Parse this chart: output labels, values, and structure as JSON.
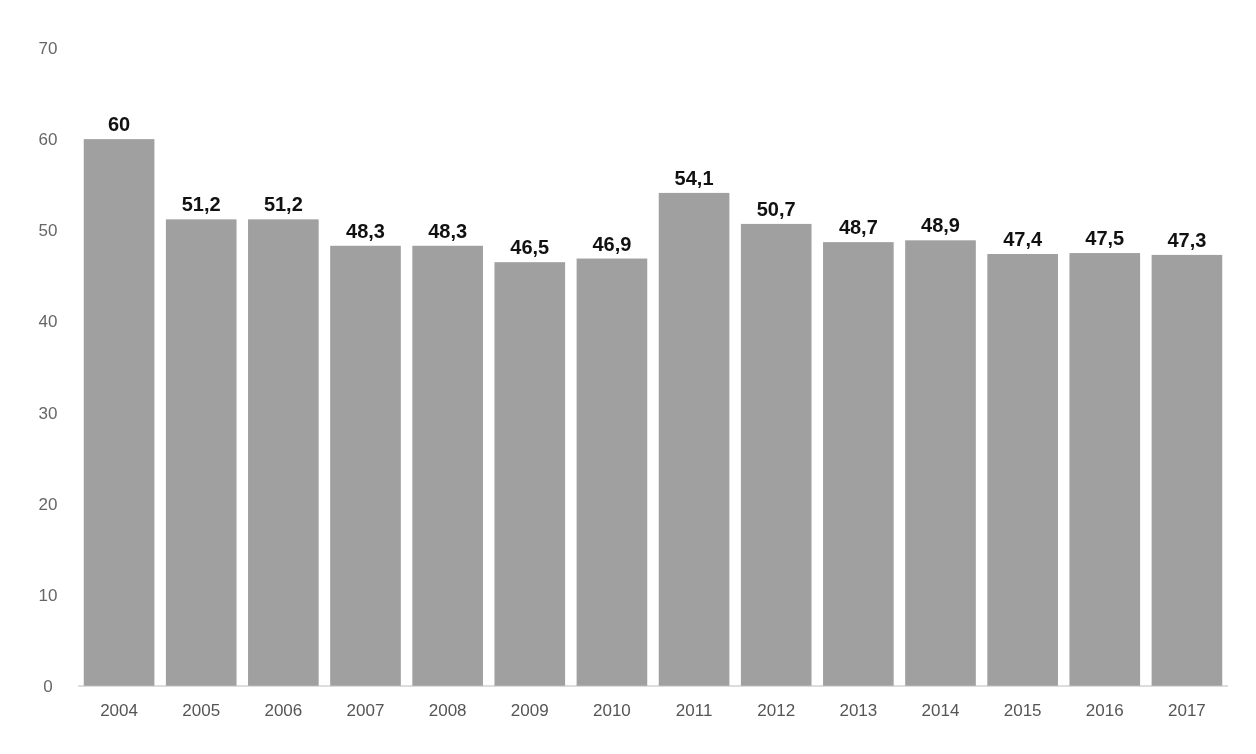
{
  "chart_data": {
    "type": "bar",
    "categories": [
      "2004",
      "2005",
      "2006",
      "2007",
      "2008",
      "2009",
      "2010",
      "2011",
      "2012",
      "2013",
      "2014",
      "2015",
      "2016",
      "2017"
    ],
    "values": [
      60,
      51.2,
      51.2,
      48.3,
      48.3,
      46.5,
      46.9,
      54.1,
      50.7,
      48.7,
      48.9,
      47.4,
      47.5,
      47.3
    ],
    "value_labels": [
      "60",
      "51,2",
      "51,2",
      "48,3",
      "48,3",
      "46,5",
      "46,9",
      "54,1",
      "50,7",
      "48,7",
      "48,9",
      "47,4",
      "47,5",
      "47,3"
    ],
    "color": "#a0a0a0",
    "ylim": [
      0,
      70
    ],
    "yticks": [
      0,
      10,
      20,
      30,
      40,
      50,
      60,
      70
    ],
    "grid": false
  }
}
